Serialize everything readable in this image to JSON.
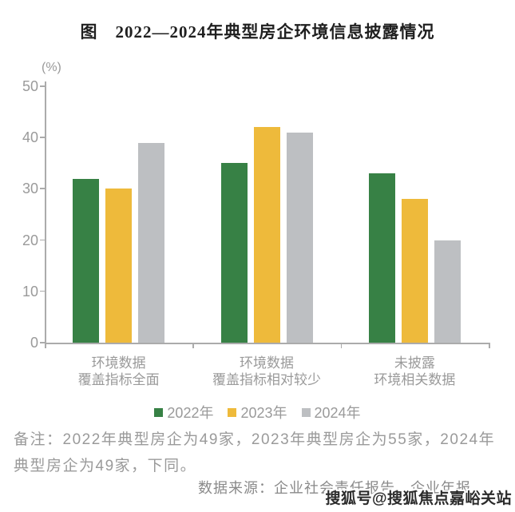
{
  "figure": {
    "title": "图　2022—2024年典型房企环境信息披露情况"
  },
  "chart_data": {
    "type": "bar",
    "title": "图　2022—2024年典型房企环境信息披露情况",
    "unit_label": "(%)",
    "categories": [
      [
        "环境数据",
        "覆盖指标全面"
      ],
      [
        "环境数据",
        "覆盖指标相对较少"
      ],
      [
        "未披露",
        "环境相关数据"
      ]
    ],
    "series": [
      {
        "name": "2022年",
        "color": "#378145",
        "values": [
          32,
          35,
          33
        ]
      },
      {
        "name": "2023年",
        "color": "#EEBA3B",
        "values": [
          30,
          42,
          28
        ]
      },
      {
        "name": "2024年",
        "color": "#BDBFC2",
        "values": [
          39,
          41,
          20
        ]
      }
    ],
    "ylim": [
      0,
      50
    ],
    "yticks": [
      0,
      10,
      20,
      30,
      40,
      50
    ],
    "ylabel": "",
    "xlabel": "",
    "grid": false,
    "legend_position": "bottom",
    "axis_color": "#ABABAB",
    "label_color": "#9A9A9A"
  },
  "footnote": {
    "text": "备注：2022年典型房企为49家，2023年典型房企为55家，2024年典型房企为49家，下同。"
  },
  "source": {
    "text": "数据来源：企业社会责任报告、企业年报。"
  },
  "watermark": {
    "text": "搜狐号@搜狐焦点嘉峪关站"
  }
}
